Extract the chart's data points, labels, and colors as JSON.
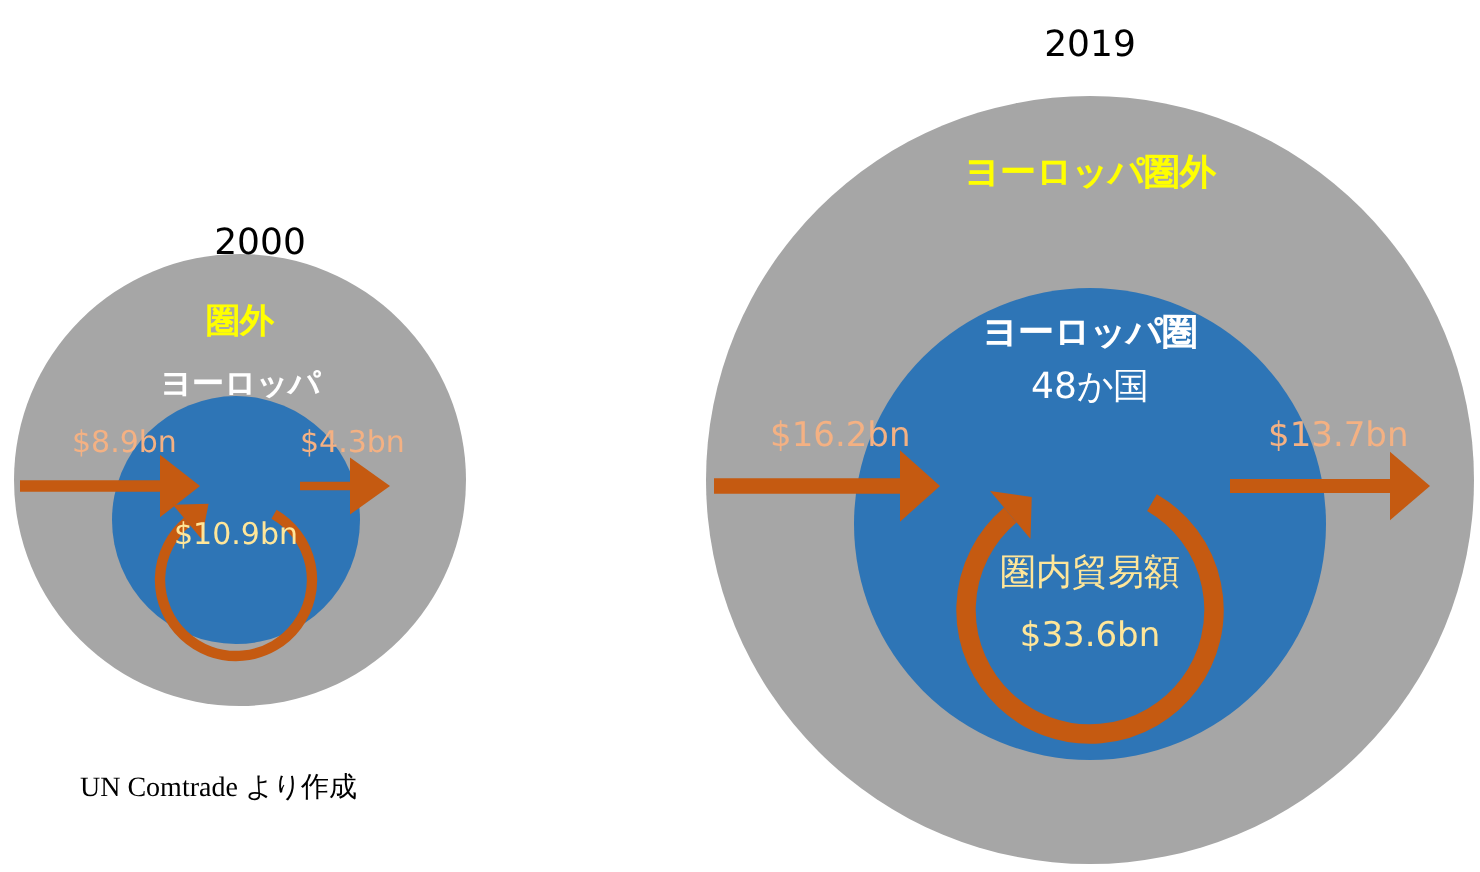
{
  "chart_data": [
    {
      "type": "other",
      "title": "2000",
      "categories": [
        null,
        null,
        null
      ],
      "values": [
        8.9,
        4.3,
        10.9
      ],
      "value_labels": [
        "$8.9bn",
        "$4.3bn",
        "$10.9bn"
      ],
      "colors": [
        "#c55a11",
        "#c55a11",
        "#c55a11"
      ],
      "annotations": [
        "圏外",
        "ヨーロッパ",
        "UN Comtrade より作成"
      ]
    },
    {
      "type": "other",
      "title": "2019",
      "categories": [
        null,
        null,
        null
      ],
      "values": [
        16.2,
        13.7,
        33.6
      ],
      "value_labels": [
        "$16.2bn",
        "$13.7bn",
        "$33.6bn"
      ],
      "colors": [
        "#c55a11",
        "#c55a11",
        "#c55a11"
      ],
      "annotations": [
        "ヨーロッパ圏外",
        "ヨーロッパ圏",
        "48か国",
        "圏内貿易額"
      ]
    }
  ]
}
